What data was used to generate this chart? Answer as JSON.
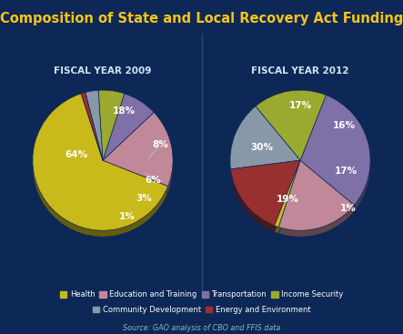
{
  "title": "Composition of State and Local Recovery Act Funding",
  "background_color": "#0d2756",
  "title_color": "#f5c518",
  "subtitle_color": "#d0e4f0",
  "label_color": "#ffffff",
  "source_text": "Source: GAO analysis of CBO and FFIS data",
  "source_color": "#8ab8cc",
  "fy2009_title": "FISCAL YEAR 2009",
  "fy2012_title": "FISCAL YEAR 2012",
  "categories": [
    "Health",
    "Education and Training",
    "Transportation",
    "Income Security",
    "Community Development",
    "Energy and Environment"
  ],
  "colors_2009": [
    "#c9b91a",
    "#c08898",
    "#8070a8",
    "#9aaa30",
    "#8898a8",
    "#993030"
  ],
  "colors_2012": [
    "#c08898",
    "#8070a8",
    "#9aaa30",
    "#8898a8",
    "#993030",
    "#c9b91a"
  ],
  "fy2009_values": [
    64,
    18,
    8,
    6,
    3,
    1
  ],
  "fy2009_startangle": 108,
  "fy2012_values": [
    19,
    30,
    17,
    16,
    17,
    1
  ],
  "fy2012_startangle": 252,
  "legend_colors": [
    "#c9b91a",
    "#c08898",
    "#8070a8",
    "#9aaa30",
    "#8898a8",
    "#993030"
  ]
}
